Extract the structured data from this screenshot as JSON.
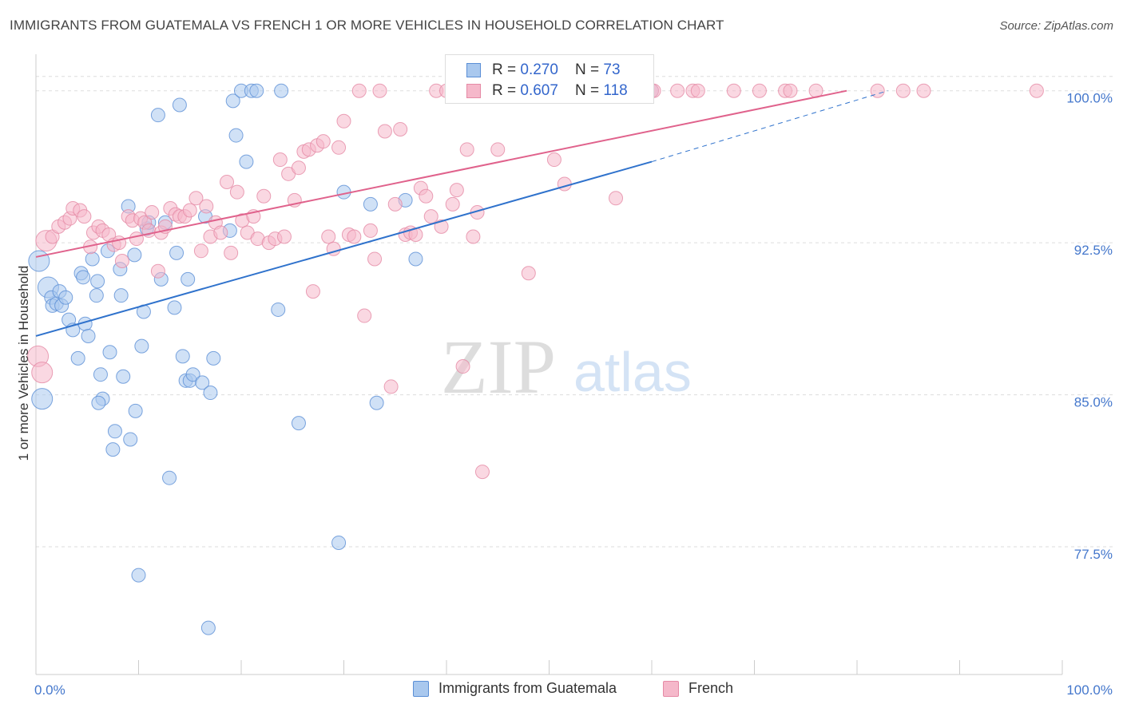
{
  "title": "IMMIGRANTS FROM GUATEMALA VS FRENCH 1 OR MORE VEHICLES IN HOUSEHOLD CORRELATION CHART",
  "source": "Source: ZipAtlas.com",
  "watermark": {
    "zip": "ZIP",
    "atlas": "atlas"
  },
  "legend": {
    "rows": [
      {
        "r_label": "R = ",
        "r_value": "0.270",
        "n_label": "N = ",
        "n_value": "73"
      },
      {
        "r_label": "R = ",
        "r_value": "0.607",
        "n_label": "N = ",
        "n_value": "118"
      }
    ]
  },
  "bottom_legend": {
    "series1": "Immigrants from Guatemala",
    "series2": "French"
  },
  "colors": {
    "blue_fill": "#a9c8ee",
    "blue_stroke": "#5b8fd6",
    "blue_line": "#2f72cc",
    "pink_fill": "#f5b8ca",
    "pink_stroke": "#e58aa5",
    "pink_line": "#e0628c",
    "grid": "#dddddd",
    "tick_text": "#4477cc"
  },
  "chart_data": {
    "type": "scatter",
    "title": "IMMIGRANTS FROM GUATEMALA VS FRENCH 1 OR MORE VEHICLES IN HOUSEHOLD CORRELATION CHART",
    "xlabel": "",
    "ylabel": "1 or more Vehicles in Household",
    "xlim": [
      0,
      100
    ],
    "ylim": [
      71.2,
      101.8
    ],
    "x_tick_labels": [
      "0.0%",
      "100.0%"
    ],
    "y_ticks": [
      77.5,
      85.0,
      92.5,
      100.0
    ],
    "y_tick_labels": [
      "77.5%",
      "85.0%",
      "92.5%",
      "100.0%"
    ],
    "grid": true,
    "legend_placement": "top-center",
    "series": [
      {
        "name": "Immigrants from Guatemala",
        "r": 0.27,
        "n": 73,
        "trend": {
          "x0": 0,
          "y0": 87.9,
          "x1": 60,
          "y1": 96.5,
          "dashed_to_x": 83,
          "dashed_to_y": 100.0
        },
        "points": [
          [
            0.3,
            91.6
          ],
          [
            0.6,
            84.8
          ],
          [
            1.2,
            90.3
          ],
          [
            1.5,
            89.8
          ],
          [
            1.6,
            89.4
          ],
          [
            2.0,
            89.5
          ],
          [
            2.3,
            90.1
          ],
          [
            2.5,
            89.4
          ],
          [
            2.9,
            89.8
          ],
          [
            3.2,
            88.7
          ],
          [
            3.6,
            88.2
          ],
          [
            4.1,
            86.8
          ],
          [
            4.4,
            91.0
          ],
          [
            4.6,
            90.8
          ],
          [
            4.8,
            88.5
          ],
          [
            5.1,
            87.9
          ],
          [
            5.5,
            91.7
          ],
          [
            5.9,
            89.9
          ],
          [
            6.0,
            90.6
          ],
          [
            6.3,
            86.0
          ],
          [
            6.5,
            84.8
          ],
          [
            6.1,
            84.6
          ],
          [
            7.0,
            92.1
          ],
          [
            7.2,
            87.1
          ],
          [
            7.5,
            82.3
          ],
          [
            7.7,
            83.2
          ],
          [
            8.2,
            91.2
          ],
          [
            8.3,
            89.9
          ],
          [
            8.5,
            85.9
          ],
          [
            9.0,
            94.3
          ],
          [
            9.2,
            82.8
          ],
          [
            9.6,
            91.9
          ],
          [
            9.7,
            84.2
          ],
          [
            10.0,
            76.1
          ],
          [
            10.3,
            87.4
          ],
          [
            10.5,
            89.1
          ],
          [
            10.8,
            93.2
          ],
          [
            11.0,
            93.5
          ],
          [
            11.9,
            98.8
          ],
          [
            12.2,
            90.7
          ],
          [
            12.6,
            93.5
          ],
          [
            13.0,
            80.9
          ],
          [
            13.5,
            89.3
          ],
          [
            13.7,
            92.0
          ],
          [
            14.0,
            99.3
          ],
          [
            14.3,
            86.9
          ],
          [
            14.6,
            85.7
          ],
          [
            14.8,
            90.7
          ],
          [
            15.0,
            85.7
          ],
          [
            15.3,
            86.0
          ],
          [
            16.2,
            85.6
          ],
          [
            16.5,
            93.8
          ],
          [
            16.8,
            73.5
          ],
          [
            17.0,
            85.1
          ],
          [
            17.3,
            86.8
          ],
          [
            18.9,
            93.1
          ],
          [
            19.2,
            99.5
          ],
          [
            19.5,
            97.8
          ],
          [
            20.0,
            100.0
          ],
          [
            20.5,
            96.5
          ],
          [
            21.0,
            100.0
          ],
          [
            21.5,
            100.0
          ],
          [
            23.6,
            89.2
          ],
          [
            23.9,
            100.0
          ],
          [
            25.6,
            83.6
          ],
          [
            29.5,
            77.7
          ],
          [
            30.0,
            95.0
          ],
          [
            32.6,
            94.4
          ],
          [
            33.2,
            84.6
          ],
          [
            36.0,
            94.6
          ],
          [
            37.0,
            91.7
          ],
          [
            50.3,
            100.0
          ],
          [
            60.0,
            100.0
          ]
        ]
      },
      {
        "name": "French",
        "r": 0.607,
        "n": 118,
        "trend": {
          "x0": 0,
          "y0": 91.8,
          "x1": 79,
          "y1": 100.0
        },
        "points": [
          [
            0.2,
            86.9
          ],
          [
            0.6,
            86.1
          ],
          [
            1.0,
            92.6
          ],
          [
            1.6,
            92.8
          ],
          [
            2.2,
            93.3
          ],
          [
            2.8,
            93.5
          ],
          [
            3.3,
            93.7
          ],
          [
            3.6,
            94.2
          ],
          [
            4.3,
            94.1
          ],
          [
            4.7,
            93.8
          ],
          [
            5.3,
            92.3
          ],
          [
            5.6,
            93.0
          ],
          [
            6.1,
            93.3
          ],
          [
            6.5,
            93.1
          ],
          [
            7.1,
            92.9
          ],
          [
            7.6,
            92.4
          ],
          [
            8.1,
            92.5
          ],
          [
            8.4,
            91.6
          ],
          [
            9.0,
            93.8
          ],
          [
            9.4,
            93.6
          ],
          [
            9.8,
            92.7
          ],
          [
            10.2,
            93.7
          ],
          [
            10.6,
            93.5
          ],
          [
            11.0,
            93.1
          ],
          [
            11.3,
            94.0
          ],
          [
            11.9,
            91.1
          ],
          [
            12.2,
            93.0
          ],
          [
            12.6,
            93.3
          ],
          [
            13.1,
            94.2
          ],
          [
            13.6,
            93.9
          ],
          [
            14.0,
            93.8
          ],
          [
            14.5,
            93.8
          ],
          [
            15.0,
            94.1
          ],
          [
            15.6,
            94.7
          ],
          [
            16.1,
            92.1
          ],
          [
            16.6,
            94.3
          ],
          [
            17.0,
            92.8
          ],
          [
            17.5,
            93.5
          ],
          [
            18.0,
            93.0
          ],
          [
            18.6,
            95.5
          ],
          [
            19.0,
            92.0
          ],
          [
            19.6,
            95.0
          ],
          [
            20.1,
            93.6
          ],
          [
            20.6,
            93.0
          ],
          [
            21.2,
            93.8
          ],
          [
            21.6,
            92.7
          ],
          [
            22.2,
            94.8
          ],
          [
            22.7,
            92.5
          ],
          [
            23.3,
            92.7
          ],
          [
            23.8,
            96.6
          ],
          [
            24.2,
            92.8
          ],
          [
            24.6,
            95.9
          ],
          [
            25.2,
            94.6
          ],
          [
            25.6,
            96.2
          ],
          [
            26.1,
            97.0
          ],
          [
            26.6,
            97.1
          ],
          [
            27.0,
            90.1
          ],
          [
            27.4,
            97.3
          ],
          [
            28.0,
            97.5
          ],
          [
            28.5,
            92.8
          ],
          [
            29.0,
            92.2
          ],
          [
            29.5,
            97.2
          ],
          [
            30.0,
            98.5
          ],
          [
            30.5,
            92.9
          ],
          [
            31.0,
            92.8
          ],
          [
            31.5,
            100.0
          ],
          [
            32.0,
            88.9
          ],
          [
            32.6,
            93.1
          ],
          [
            33.0,
            91.7
          ],
          [
            33.5,
            100.0
          ],
          [
            34.0,
            98.0
          ],
          [
            34.6,
            85.4
          ],
          [
            35.0,
            94.4
          ],
          [
            35.5,
            98.1
          ],
          [
            36.0,
            92.9
          ],
          [
            36.5,
            93.0
          ],
          [
            37.0,
            92.9
          ],
          [
            37.5,
            95.2
          ],
          [
            38.0,
            94.8
          ],
          [
            38.5,
            93.8
          ],
          [
            39.0,
            100.0
          ],
          [
            39.5,
            93.3
          ],
          [
            40.0,
            100.0
          ],
          [
            40.6,
            94.4
          ],
          [
            41.0,
            95.1
          ],
          [
            41.6,
            86.4
          ],
          [
            42.0,
            97.1
          ],
          [
            42.6,
            92.8
          ],
          [
            43.0,
            94.0
          ],
          [
            43.5,
            81.2
          ],
          [
            44.0,
            100.0
          ],
          [
            45.0,
            97.1
          ],
          [
            46.0,
            100.0
          ],
          [
            47.0,
            100.0
          ],
          [
            48.0,
            91.0
          ],
          [
            49.0,
            100.0
          ],
          [
            50.0,
            100.0
          ],
          [
            50.5,
            96.6
          ],
          [
            51.5,
            95.4
          ],
          [
            53.0,
            100.0
          ],
          [
            55.0,
            100.0
          ],
          [
            56.0,
            100.0
          ],
          [
            56.5,
            94.7
          ],
          [
            60.0,
            100.0
          ],
          [
            64.0,
            100.0
          ],
          [
            64.5,
            100.0
          ],
          [
            68.0,
            100.0
          ],
          [
            70.5,
            100.0
          ],
          [
            73.0,
            100.0
          ],
          [
            73.5,
            100.0
          ],
          [
            76.0,
            100.0
          ],
          [
            82.0,
            100.0
          ],
          [
            84.5,
            100.0
          ],
          [
            86.5,
            100.0
          ],
          [
            97.5,
            100.0
          ],
          [
            60.2,
            100.0
          ],
          [
            62.5,
            100.0
          ],
          [
            58.0,
            100.0
          ]
        ]
      }
    ]
  }
}
